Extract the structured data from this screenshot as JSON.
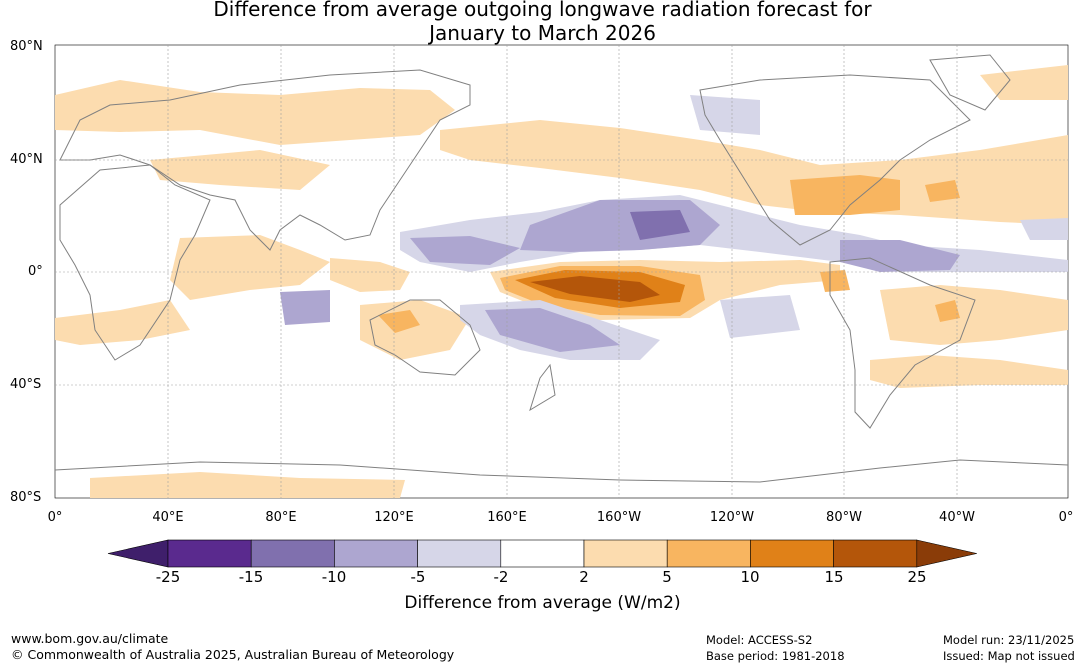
{
  "title": {
    "line1": "Difference from average outgoing longwave radiation forecast for",
    "line2": "January to March 2026"
  },
  "map": {
    "lat_labels": [
      "80°N",
      "40°N",
      "0°",
      "40°S",
      "80°S"
    ],
    "lon_labels": [
      "0°",
      "40°E",
      "80°E",
      "120°E",
      "160°E",
      "160°W",
      "120°W",
      "80°W",
      "40°W",
      "0°"
    ],
    "colors": {
      "ocean": "#ffffff",
      "coast": "#808080",
      "grid": "#a0a0a0"
    }
  },
  "colorbar": {
    "ticks": [
      "-25",
      "-15",
      "-10",
      "-5",
      "-2",
      "2",
      "5",
      "10",
      "15",
      "25"
    ],
    "colors": [
      "#3f1f6b",
      "#5a2a8e",
      "#8070ae",
      "#ada6d0",
      "#d6d6e8",
      "#ffffff",
      "#fcdcaf",
      "#f8b560",
      "#e08118",
      "#b4560a",
      "#8a3c08"
    ],
    "label": "Difference from average (W/m2)"
  },
  "footer": {
    "url": "www.bom.gov.au/climate",
    "copyright": "© Commonwealth of Australia 2025, Australian Bureau of Meteorology",
    "model": "Model: ACCESS-S2",
    "base_period": "Base period: 1981-2018",
    "model_run": "Model run: 23/11/2025",
    "issued": "Issued: Map not issued"
  }
}
